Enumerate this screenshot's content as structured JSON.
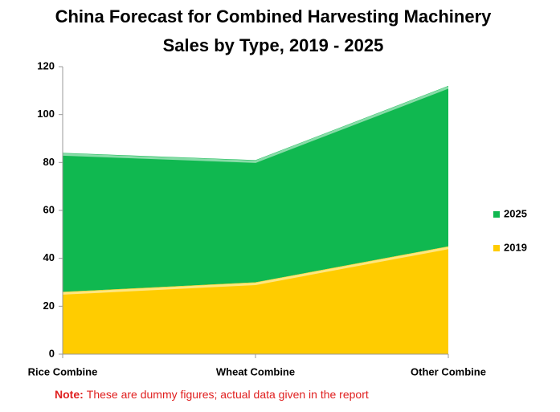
{
  "chart_data": {
    "type": "area",
    "stacked": true,
    "title": [
      "China Forecast for Combined Harvesting Machinery",
      "Sales by Type, 2019 - 2025"
    ],
    "categories": [
      "Rice Combine",
      "Wheat Combine",
      "Other Combine"
    ],
    "series": [
      {
        "name": "2019",
        "color": "#ffcc00",
        "values": [
          26,
          30,
          45
        ]
      },
      {
        "name": "2025",
        "color": "#10b850",
        "values": [
          58,
          51,
          67
        ]
      }
    ],
    "ylim": [
      0,
      120
    ],
    "yticks": [
      0,
      20,
      40,
      60,
      80,
      100,
      120
    ],
    "grid": false,
    "legend": "right",
    "note": {
      "label": "Note:",
      "text": "These are dummy figures; actual data given in the report"
    }
  }
}
